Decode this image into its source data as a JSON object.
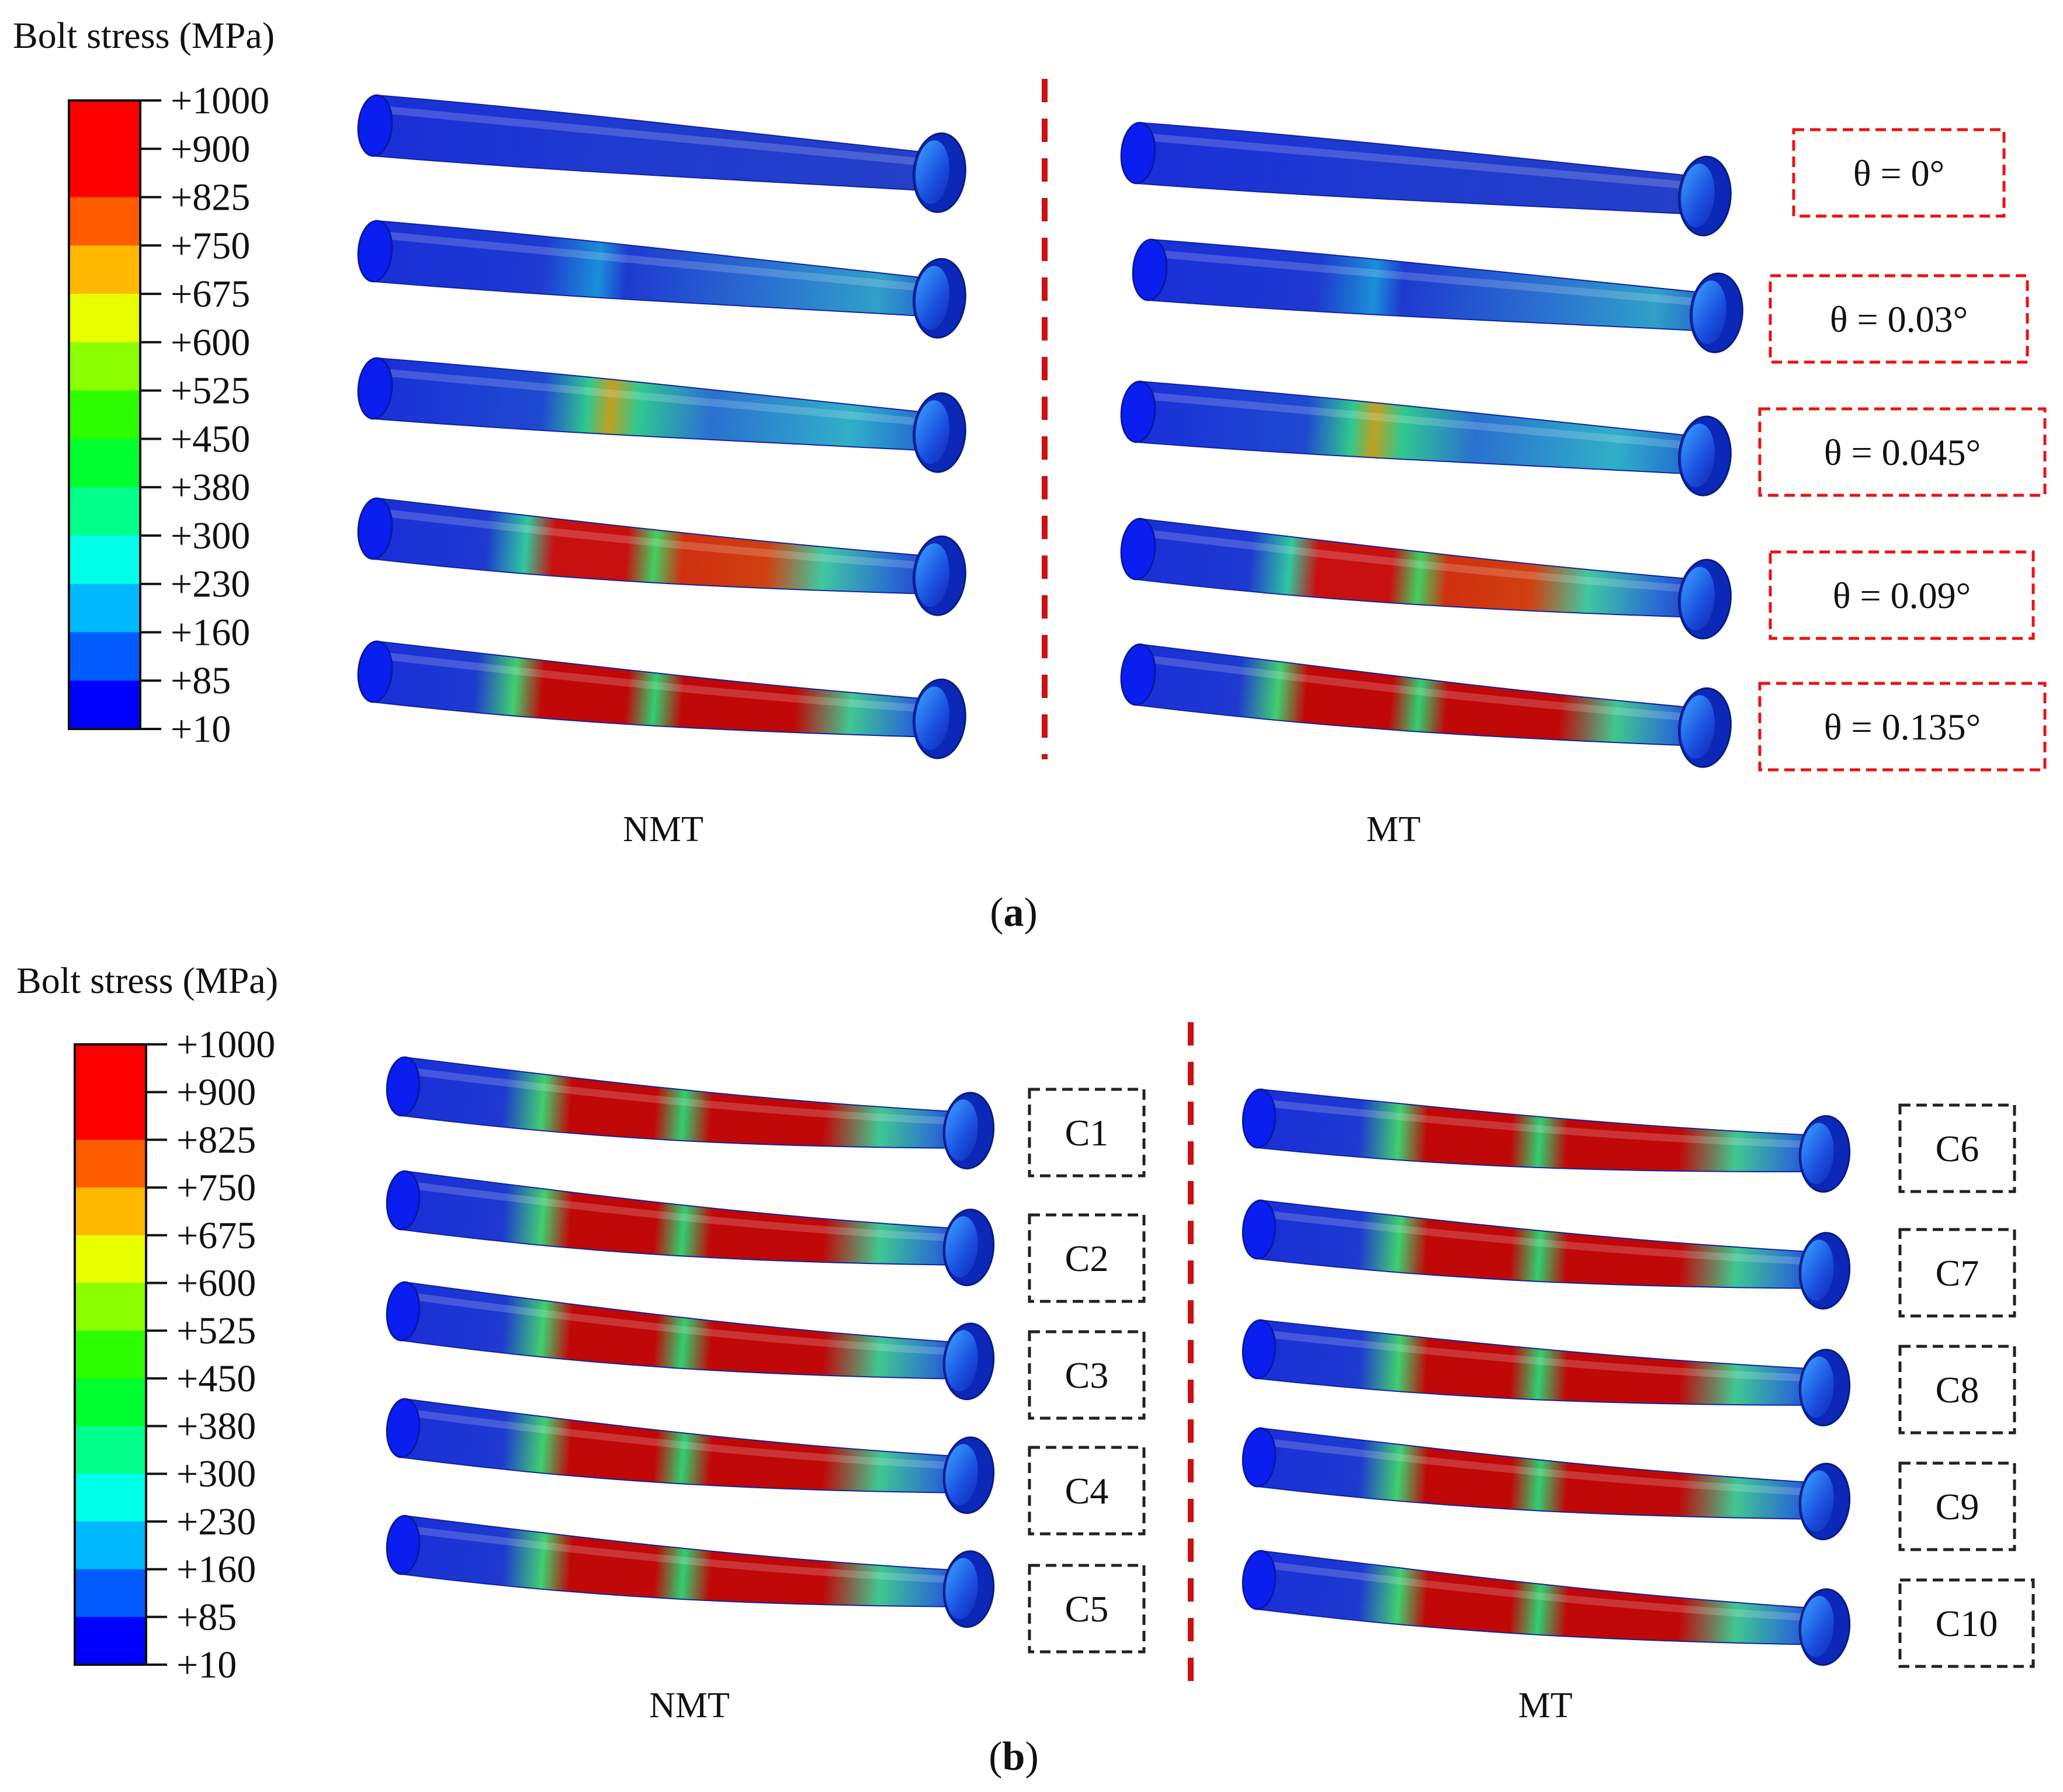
{
  "colors": {
    "scale": [
      "#0000ff",
      "#005cff",
      "#00b9ff",
      "#00ffe8",
      "#00ff8b",
      "#00ff2e",
      "#2eff00",
      "#8bff00",
      "#e8ff00",
      "#ffb900",
      "#ff5c00",
      "#ff0000",
      "#ff0000"
    ],
    "divider": "#cc1111",
    "red_box": "#ee1111",
    "black_box": "#222222",
    "bolt_low": "#1030c8",
    "bolt_high": "#c00000"
  },
  "legend": {
    "title_a": "Bolt stress (MPa)",
    "title_b": "Bolt stress (MPa)",
    "ticks": [
      "+1000",
      "+900",
      "+825",
      "+750",
      "+675",
      "+600",
      "+525",
      "+450",
      "+380",
      "+300",
      "+230",
      "+160",
      "+85",
      "+10"
    ]
  },
  "panel_a": {
    "caption": "(a)",
    "caption_letter": "a",
    "left_label": "NMT",
    "right_label": "MT",
    "cases": [
      {
        "label": "θ = 0°",
        "stress_level": 0.0
      },
      {
        "label": "θ = 0.03°",
        "stress_level": 0.25
      },
      {
        "label": "θ = 0.045°",
        "stress_level": 0.4
      },
      {
        "label": "θ = 0.09°",
        "stress_level": 0.85
      },
      {
        "label": "θ = 0.135°",
        "stress_level": 1.0
      }
    ]
  },
  "panel_b": {
    "caption": "(b)",
    "caption_letter": "b",
    "left_label": "NMT",
    "right_label": "MT",
    "left_cases": [
      "C1",
      "C2",
      "C3",
      "C4",
      "C5"
    ],
    "right_cases": [
      "C6",
      "C7",
      "C8",
      "C9",
      "C10"
    ]
  }
}
